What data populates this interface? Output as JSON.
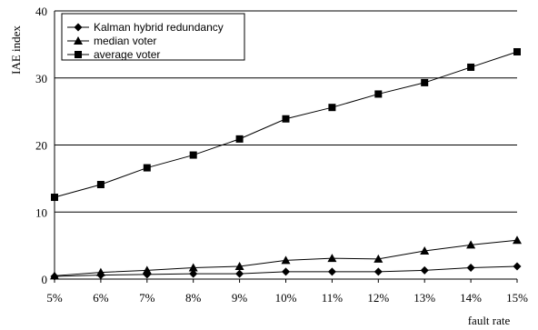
{
  "chart_data": {
    "type": "line",
    "title": "",
    "xlabel": "fault rate",
    "ylabel": "IAE index",
    "categories": [
      "5%",
      "6%",
      "7%",
      "8%",
      "9%",
      "10%",
      "11%",
      "12%",
      "13%",
      "14%",
      "15%"
    ],
    "ylim": [
      0,
      40
    ],
    "yticks": [
      0,
      10,
      20,
      30,
      40
    ],
    "grid": "horizontal",
    "legend_position": "top-left",
    "series": [
      {
        "name": "Kalman hybrid redundancy",
        "marker": "diamond",
        "values": [
          0.4,
          0.6,
          0.7,
          0.8,
          0.8,
          1.1,
          1.1,
          1.1,
          1.3,
          1.7,
          1.9
        ]
      },
      {
        "name": "median voter",
        "marker": "triangle",
        "values": [
          0.5,
          1.0,
          1.3,
          1.7,
          1.9,
          2.8,
          3.1,
          3.0,
          4.2,
          5.1,
          5.8
        ]
      },
      {
        "name": "average voter",
        "marker": "square",
        "values": [
          12.2,
          14.1,
          16.6,
          18.5,
          20.9,
          23.9,
          25.6,
          27.6,
          29.3,
          31.6,
          33.9
        ]
      }
    ]
  }
}
